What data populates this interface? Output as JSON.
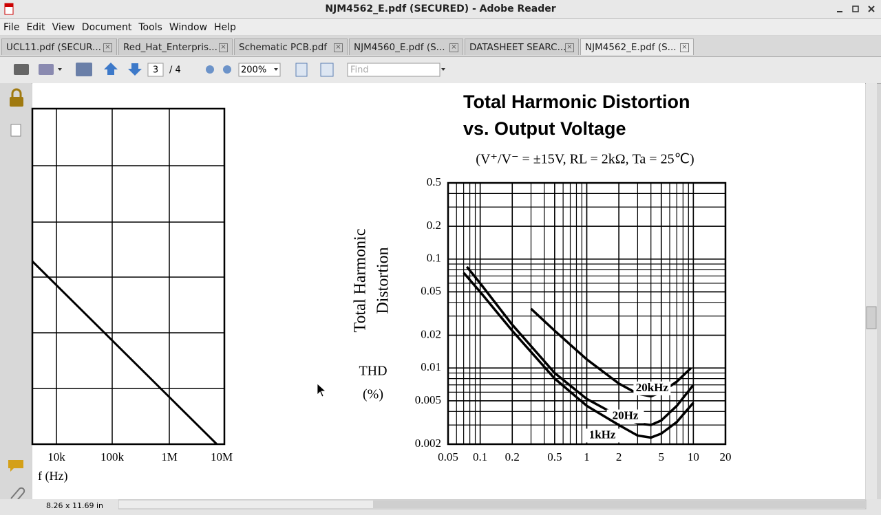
{
  "window": {
    "title": "NJM4562_E.pdf (SECURED) - Adobe Reader"
  },
  "menu": [
    "File",
    "Edit",
    "View",
    "Document",
    "Tools",
    "Window",
    "Help"
  ],
  "tabs": [
    "UCL11.pdf (SECUR...",
    "Red_Hat_Enterpris...",
    "Schematic PCB.pdf",
    "NJM4560_E.pdf (S...",
    "DATASHEET SEARC...",
    "NJM4562_E.pdf (S..."
  ],
  "toolbar": {
    "page": "3",
    "pages": "/ 4",
    "zoom": "200%",
    "find": "Find"
  },
  "status": "8.26 x 11.69 in",
  "document": {
    "left_chart": {
      "xtick_labels": [
        "10k",
        "100k",
        "1M",
        "10M"
      ],
      "xlabel": "f (Hz)"
    },
    "chart": {
      "type": "line",
      "title": [
        "Total Harmonic Distortion",
        "vs. Output Voltage"
      ],
      "subtitle": "(V⁺/V⁻ = ±15V,  RL = 2kΩ,  Ta = 25℃)",
      "ylabel": [
        "Total Harmonic",
        "Distortion"
      ],
      "ylabel2": [
        "THD",
        "(%)"
      ],
      "xlog": true,
      "ylog": true,
      "xlim": [
        0.05,
        20
      ],
      "ylim": [
        0.002,
        0.5
      ],
      "xticks": [
        0.05,
        0.1,
        0.2,
        0.5,
        1,
        2,
        5,
        10,
        20
      ],
      "yticks": [
        0.5,
        0.2,
        0.1,
        0.05,
        0.02,
        0.01,
        0.005,
        0.002
      ],
      "series": [
        {
          "name": "20kHz",
          "color": "#000000",
          "x": [
            0.3,
            0.5,
            1,
            2,
            3,
            4,
            5,
            7,
            9.5
          ],
          "values": [
            0.035,
            0.022,
            0.012,
            0.0072,
            0.0058,
            0.0055,
            0.006,
            0.0075,
            0.01
          ]
        },
        {
          "name": "20Hz",
          "color": "#000000",
          "x": [
            0.075,
            0.1,
            0.2,
            0.5,
            1,
            2,
            3,
            4,
            5,
            7,
            10
          ],
          "values": [
            0.085,
            0.06,
            0.025,
            0.009,
            0.0052,
            0.0036,
            0.0031,
            0.003,
            0.0033,
            0.0045,
            0.007
          ]
        },
        {
          "name": "1kHz",
          "color": "#000000",
          "x": [
            0.07,
            0.1,
            0.2,
            0.5,
            1,
            2,
            3,
            4,
            5,
            7,
            10
          ],
          "values": [
            0.075,
            0.05,
            0.022,
            0.008,
            0.0045,
            0.003,
            0.0024,
            0.0023,
            0.0025,
            0.0032,
            0.0048
          ]
        }
      ]
    }
  }
}
